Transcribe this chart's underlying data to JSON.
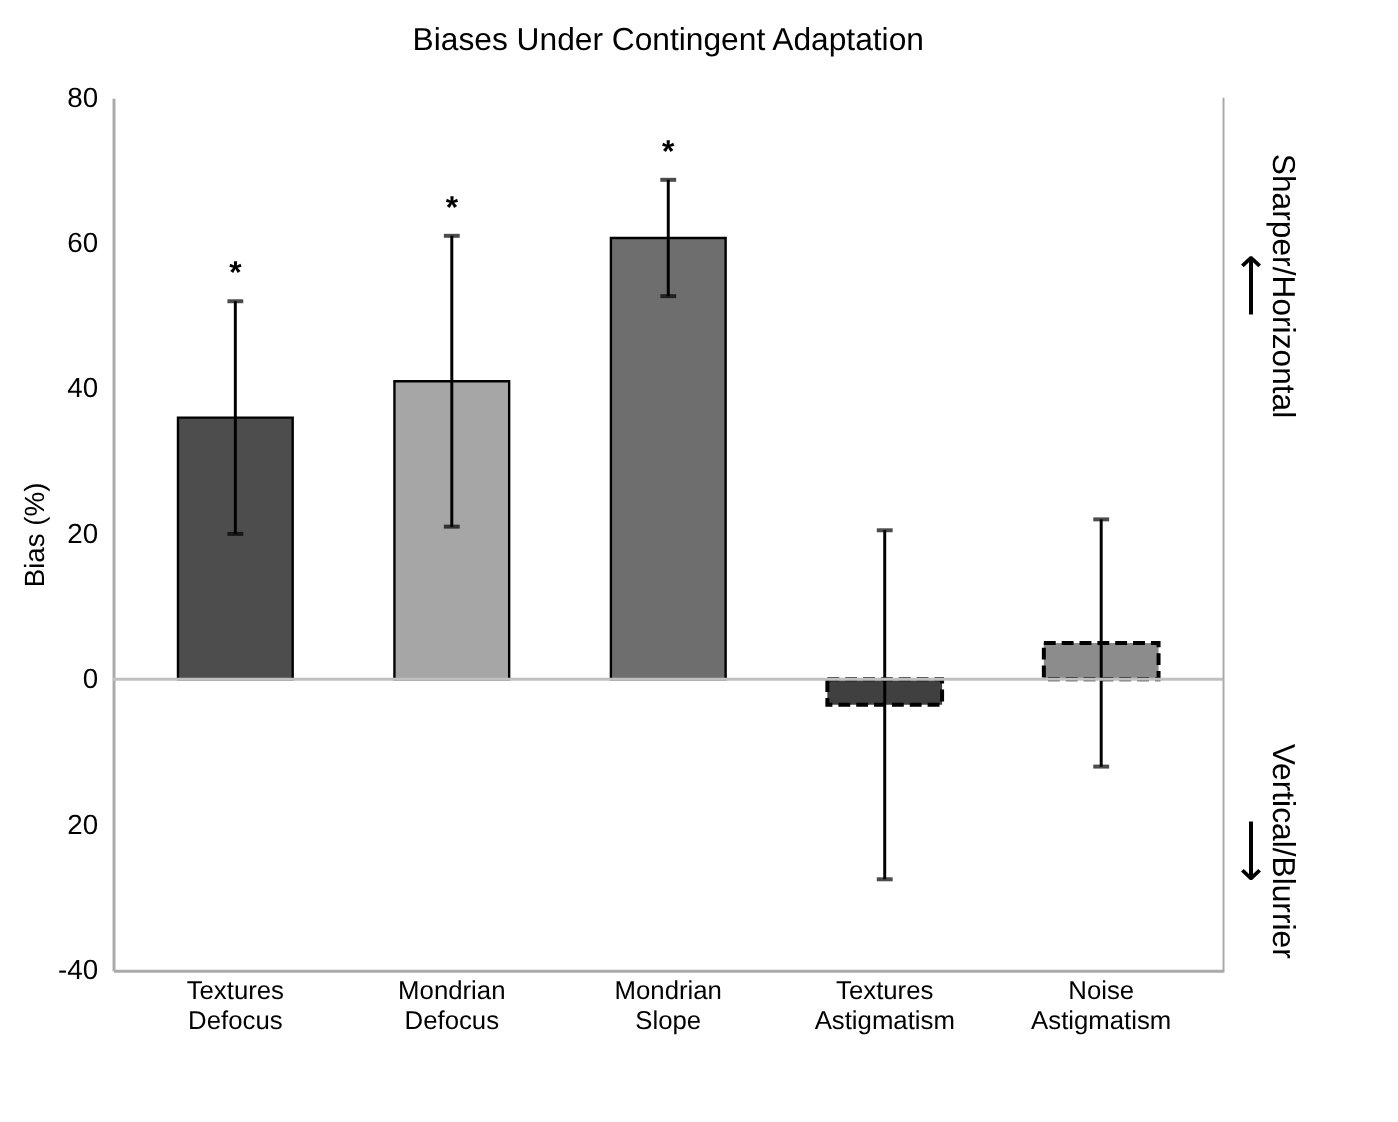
{
  "chart_data": {
    "type": "bar",
    "title": "Biases Under Contingent Adaptation",
    "ylabel": "Bias (%)",
    "categories": [
      "Textures Defocus",
      "Mondrian Defocus",
      "Mondrian Slope",
      "Textures Astigmatism",
      "Noise Astigmatism"
    ],
    "series": [
      {
        "line_style": "solid",
        "colors": [
          "#4d4d4d",
          "#a6a6a6",
          "#6e6e6e",
          null,
          null
        ],
        "values": [
          36,
          41,
          60.7,
          null,
          null
        ],
        "errors": [
          16,
          20,
          8,
          null,
          null
        ]
      },
      {
        "line_style": "dashed",
        "colors": [
          null,
          null,
          null,
          "#404040",
          "#8c8c8c"
        ],
        "values": [
          null,
          null,
          null,
          -3.5,
          5
        ],
        "errors": [
          null,
          null,
          null,
          24,
          17
        ]
      }
    ],
    "ylim": [
      -40,
      80
    ],
    "yticks": [
      {
        "value": -40,
        "label": "-40"
      },
      {
        "value": -20,
        "label": "20"
      },
      0,
      20,
      40,
      60,
      80
    ],
    "ref_lines": [
      {
        "axis": "y",
        "value": 0,
        "color": "#c0c0c0"
      }
    ],
    "grid": false,
    "annotations": [
      "*",
      "*",
      "*",
      "Sharper/Horizontal",
      "⟵",
      "Vertical/Blurrier",
      "⟶"
    ]
  }
}
